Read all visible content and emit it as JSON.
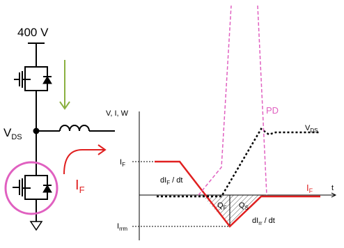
{
  "circuit": {
    "supply": "400 V",
    "node_label": {
      "main": "V",
      "sub": "DS"
    },
    "current_label": {
      "main": "I",
      "sub": "F"
    }
  },
  "waveform": {
    "axis_label": "V, I, W",
    "time_label": "t",
    "if_level": {
      "main": "I",
      "sub": "F"
    },
    "irrm_level": {
      "main": "I",
      "sub": "rrm"
    },
    "pd_label": "PD",
    "vds_label": {
      "main": "V",
      "sub": "DS"
    },
    "if_label": {
      "main": "I",
      "sub": "F"
    },
    "fall_slope": {
      "main": "dI",
      "sub": "F",
      "rest": " / dt"
    },
    "rise_slope": {
      "main": "dI",
      "sub": "rr",
      "rest": " / dt"
    },
    "qf": {
      "main": "Q",
      "sub": "F"
    },
    "qs": {
      "main": "Q",
      "sub": "S"
    }
  }
}
